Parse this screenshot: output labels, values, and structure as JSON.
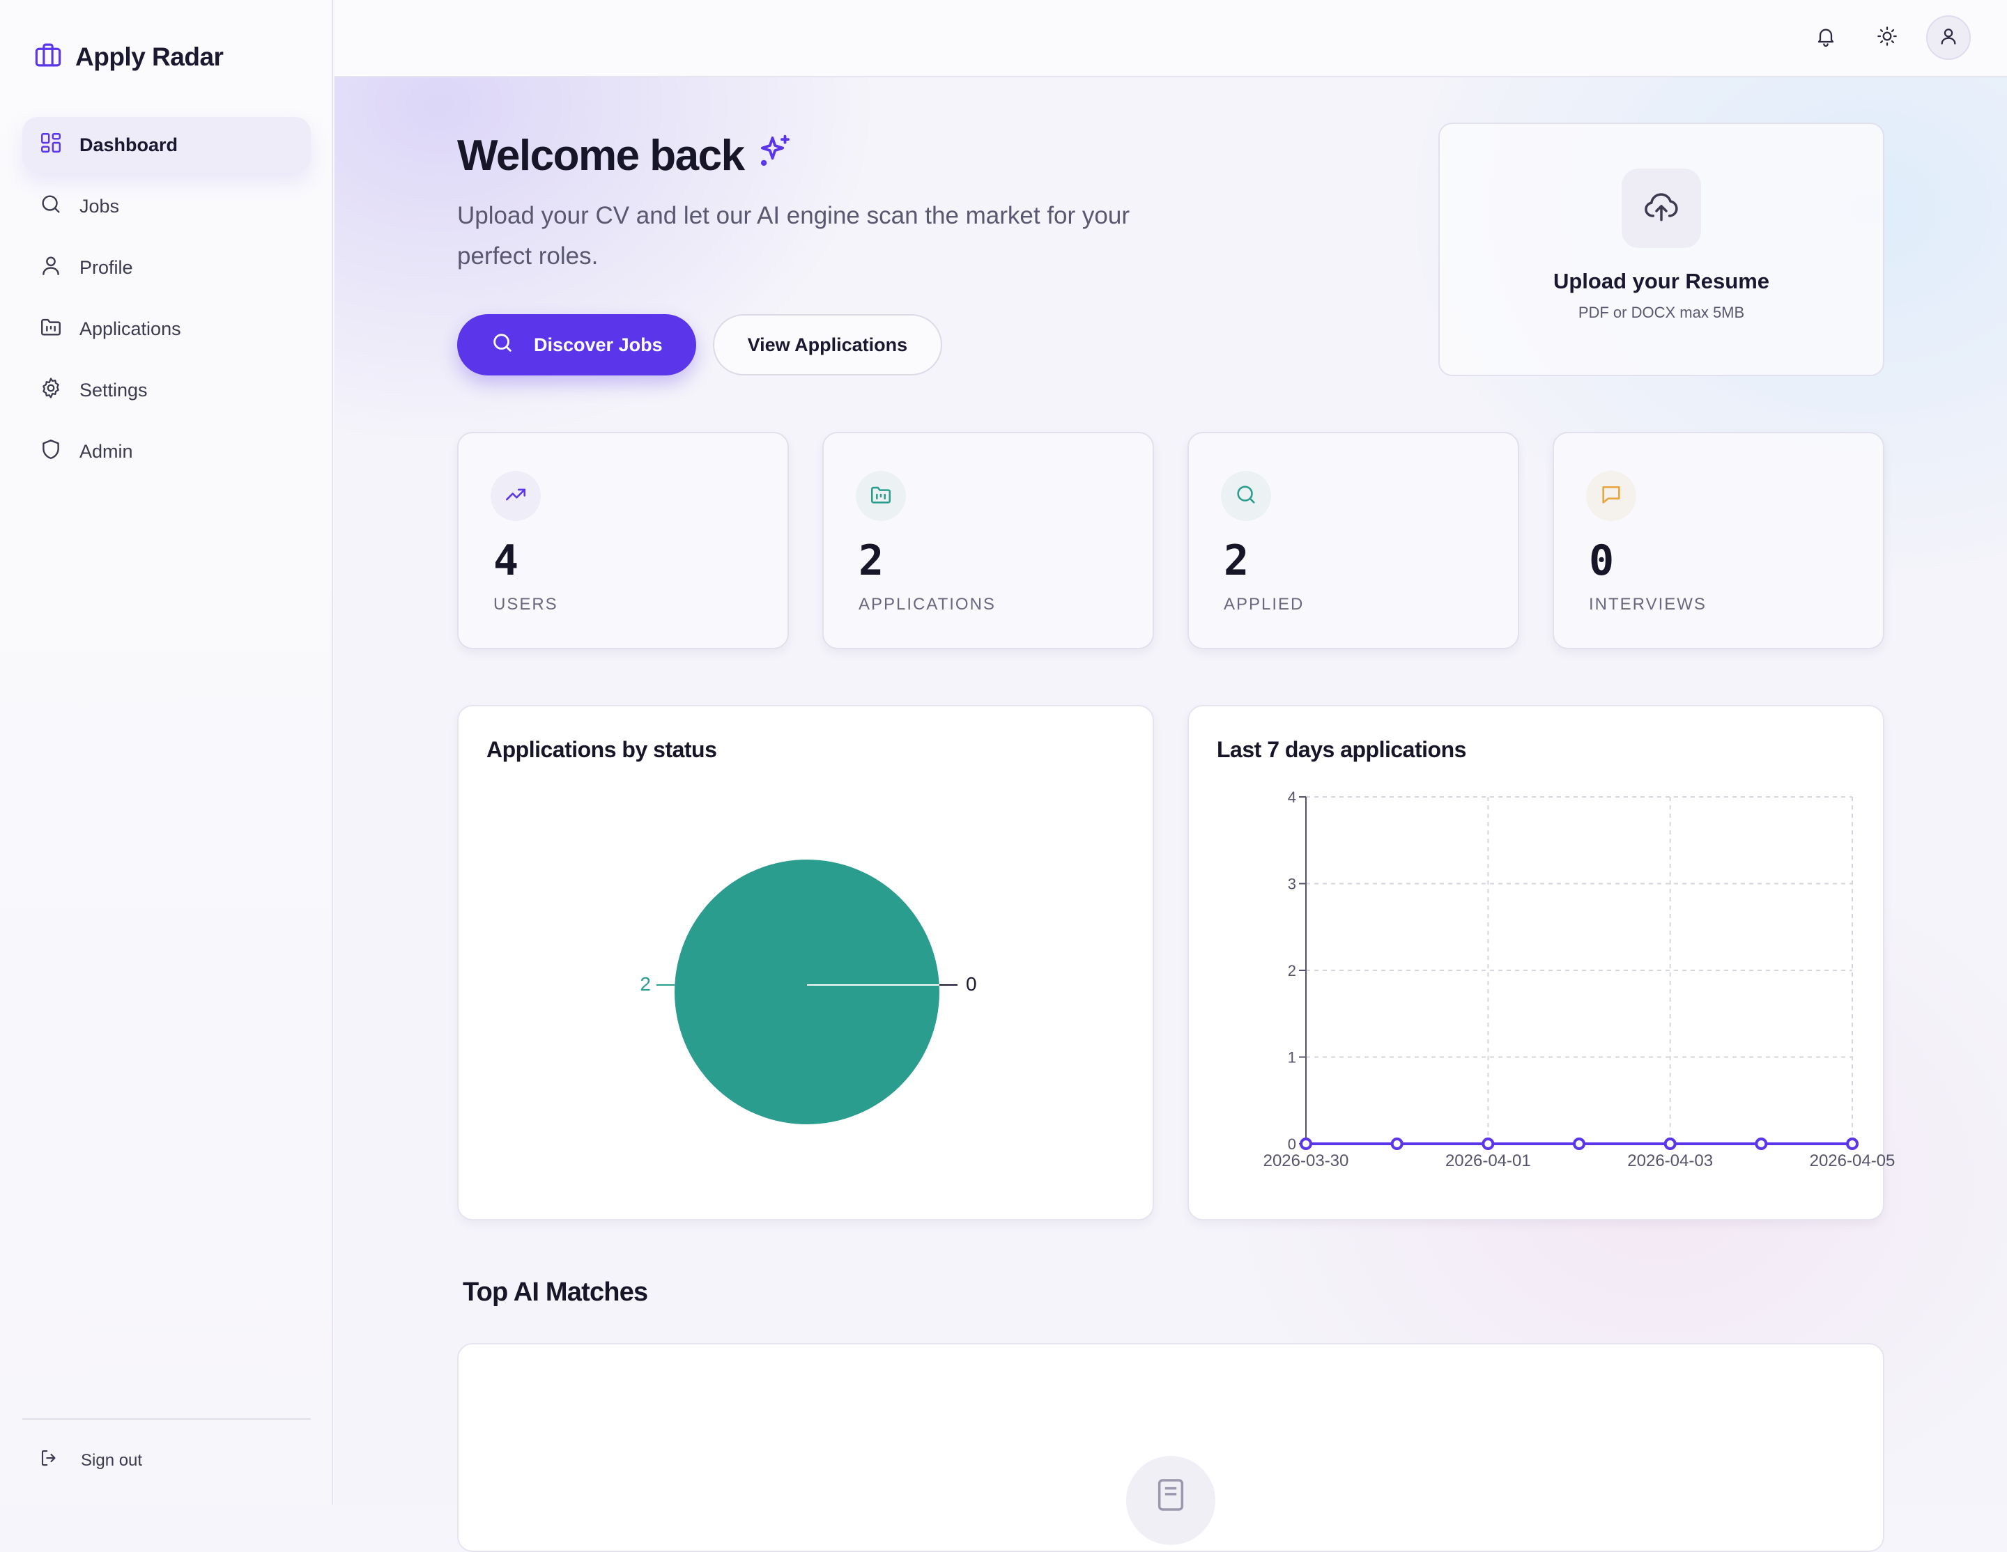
{
  "app": {
    "name": "Apply Radar"
  },
  "sidebar": {
    "items": [
      {
        "label": "Dashboard",
        "icon": "dashboard-icon",
        "active": true
      },
      {
        "label": "Jobs",
        "icon": "search-icon",
        "active": false
      },
      {
        "label": "Profile",
        "icon": "user-icon",
        "active": false
      },
      {
        "label": "Applications",
        "icon": "folder-icon",
        "active": false
      },
      {
        "label": "Settings",
        "icon": "gear-icon",
        "active": false
      },
      {
        "label": "Admin",
        "icon": "shield-icon",
        "active": false
      }
    ],
    "signout_label": "Sign out"
  },
  "topbar": {
    "icons": [
      "bell-icon",
      "sun-icon",
      "user-avatar-icon"
    ]
  },
  "hero": {
    "title": "Welcome back",
    "subtitle": "Upload your CV and let our AI engine scan the market for your perfect roles.",
    "primary_button": "Discover Jobs",
    "secondary_button": "View Applications"
  },
  "upload": {
    "title": "Upload your Resume",
    "subtitle": "PDF or DOCX max 5MB"
  },
  "stats": [
    {
      "value": "4",
      "label": "USERS",
      "icon": "trending-up-icon",
      "color": "#5b35ea"
    },
    {
      "value": "2",
      "label": "APPLICATIONS",
      "icon": "folder-icon",
      "color": "#2a9d8f"
    },
    {
      "value": "2",
      "label": "APPLIED",
      "icon": "search-icon",
      "color": "#2a9d8f"
    },
    {
      "value": "0",
      "label": "INTERVIEWS",
      "icon": "message-icon",
      "color": "#e8a33b"
    }
  ],
  "panels": {
    "status_title": "Applications by status",
    "weekly_title": "Last 7 days applications"
  },
  "chart_data": [
    {
      "type": "pie",
      "title": "Applications by status",
      "slices": [
        {
          "value": 2,
          "label": "2",
          "color": "#2a9d8f"
        },
        {
          "value": 0,
          "label": "0",
          "color": "#1a1830"
        }
      ]
    },
    {
      "type": "line",
      "title": "Last 7 days applications",
      "x": [
        "2026-03-30",
        "2026-03-31",
        "2026-04-01",
        "2026-04-02",
        "2026-04-03",
        "2026-04-04",
        "2026-04-05"
      ],
      "x_tick_labels": [
        "2026-03-30",
        "2026-04-01",
        "2026-04-03",
        "2026-04-05"
      ],
      "series": [
        {
          "values": [
            0,
            0,
            0,
            0,
            0,
            0,
            0
          ],
          "color": "#5b35ea"
        }
      ],
      "ylim": [
        0,
        4
      ],
      "y_ticks": [
        0,
        1,
        2,
        3,
        4
      ],
      "grid": true
    }
  ],
  "matches": {
    "title": "Top AI Matches"
  },
  "colors": {
    "accent": "#5b35ea",
    "teal": "#2a9d8f",
    "amber": "#e8a33b"
  }
}
